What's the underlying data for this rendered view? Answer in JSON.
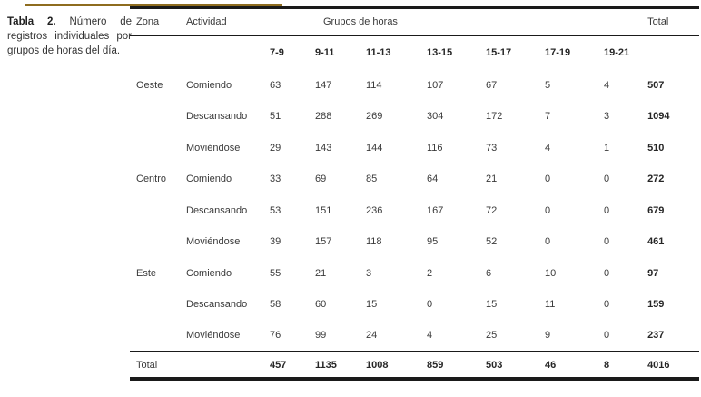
{
  "caption": {
    "label": "Tabla 2.",
    "text": " Número de registros individuales por grupos de horas del día."
  },
  "colors": {
    "accent_gold": "#8e6c1f",
    "rule_black": "#1a1a1a"
  },
  "table": {
    "header": {
      "zona": "Zona",
      "actividad": "Actividad",
      "grupos": "Grupos de horas",
      "total": "Total"
    },
    "hour_groups": [
      "7-9",
      "9-11",
      "11-13",
      "13-15",
      "15-17",
      "17-19",
      "19-21"
    ],
    "rows": [
      {
        "zona": "Oeste",
        "actividad": "Comiendo",
        "values": [
          63,
          147,
          114,
          107,
          67,
          5,
          4
        ],
        "total": 507
      },
      {
        "zona": "",
        "actividad": "Descansando",
        "values": [
          51,
          288,
          269,
          304,
          172,
          7,
          3
        ],
        "total": 1094
      },
      {
        "zona": "",
        "actividad": "Moviéndose",
        "values": [
          29,
          143,
          144,
          116,
          73,
          4,
          1
        ],
        "total": 510
      },
      {
        "zona": "Centro",
        "actividad": "Comiendo",
        "values": [
          33,
          69,
          85,
          64,
          21,
          0,
          0
        ],
        "total": 272
      },
      {
        "zona": "",
        "actividad": "Descansando",
        "values": [
          53,
          151,
          236,
          167,
          72,
          0,
          0
        ],
        "total": 679
      },
      {
        "zona": "",
        "actividad": "Moviéndose",
        "values": [
          39,
          157,
          118,
          95,
          52,
          0,
          0
        ],
        "total": 461
      },
      {
        "zona": "Este",
        "actividad": "Comiendo",
        "values": [
          55,
          21,
          3,
          2,
          6,
          10,
          0
        ],
        "total": 97
      },
      {
        "zona": "",
        "actividad": "Descansando",
        "values": [
          58,
          60,
          15,
          0,
          15,
          11,
          0
        ],
        "total": 159
      },
      {
        "zona": "",
        "actividad": "Moviéndose",
        "values": [
          76,
          99,
          24,
          4,
          25,
          9,
          0
        ],
        "total": 237
      }
    ],
    "total_row": {
      "label": "Total",
      "values": [
        457,
        1135,
        1008,
        859,
        503,
        46,
        8
      ],
      "total": 4016
    }
  }
}
